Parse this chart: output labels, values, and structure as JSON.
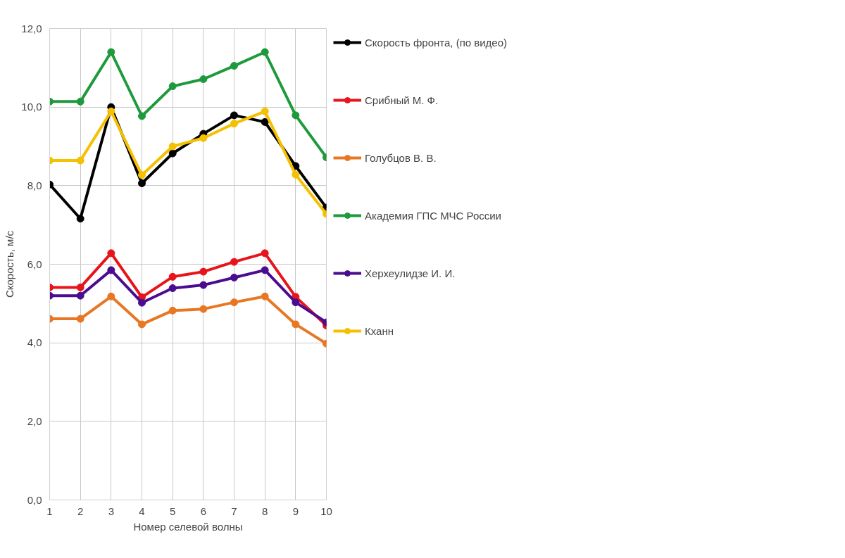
{
  "chart_data": {
    "type": "line",
    "xlabel": "Номер селевой волны",
    "ylabel": "Скорость, м/с",
    "x": [
      1,
      2,
      3,
      4,
      5,
      6,
      7,
      8,
      9,
      10
    ],
    "series": [
      {
        "name": "Скорость фронта, (по видео)",
        "color": "#000000",
        "values": [
          8.03,
          7.16,
          10.0,
          8.06,
          8.82,
          9.32,
          9.79,
          9.62,
          8.5,
          7.44
        ]
      },
      {
        "name": "Срибный М. Ф.",
        "color": "#e8141b",
        "values": [
          5.41,
          5.41,
          6.28,
          5.16,
          5.68,
          5.81,
          6.06,
          6.28,
          5.17,
          4.44
        ]
      },
      {
        "name": "Голубцов В. В.",
        "color": "#e87722",
        "values": [
          4.61,
          4.61,
          5.18,
          4.47,
          4.82,
          4.86,
          5.03,
          5.18,
          4.47,
          3.98
        ]
      },
      {
        "name": "Академия ГПС МЧС России",
        "color": "#1e9a3c",
        "values": [
          10.14,
          10.14,
          11.4,
          9.77,
          10.53,
          10.71,
          11.05,
          11.4,
          9.79,
          8.72
        ]
      },
      {
        "name": "Херхеулидзе И. И.",
        "color": "#4b0d8f",
        "values": [
          5.2,
          5.2,
          5.85,
          5.02,
          5.39,
          5.47,
          5.66,
          5.85,
          5.03,
          4.52
        ]
      },
      {
        "name": "Кханн",
        "color": "#f5c000",
        "values": [
          8.64,
          8.64,
          9.89,
          8.27,
          9.0,
          9.21,
          9.58,
          9.89,
          8.28,
          7.28
        ]
      }
    ],
    "xlim": [
      1,
      10
    ],
    "xticks": [
      1,
      2,
      3,
      4,
      5,
      6,
      7,
      8,
      9,
      10
    ],
    "ylim": [
      0,
      12
    ],
    "yticks": [
      {
        "value": 0,
        "label": "0,0"
      },
      {
        "value": 2,
        "label": "2,0"
      },
      {
        "value": 4,
        "label": "4,0"
      },
      {
        "value": 6,
        "label": "6,0"
      },
      {
        "value": 8,
        "label": "8,0"
      },
      {
        "value": 10,
        "label": "10,0"
      },
      {
        "value": 12,
        "label": "12,0"
      }
    ],
    "grid": true,
    "legend": "right",
    "marker": "circle",
    "line_style": "solid"
  }
}
